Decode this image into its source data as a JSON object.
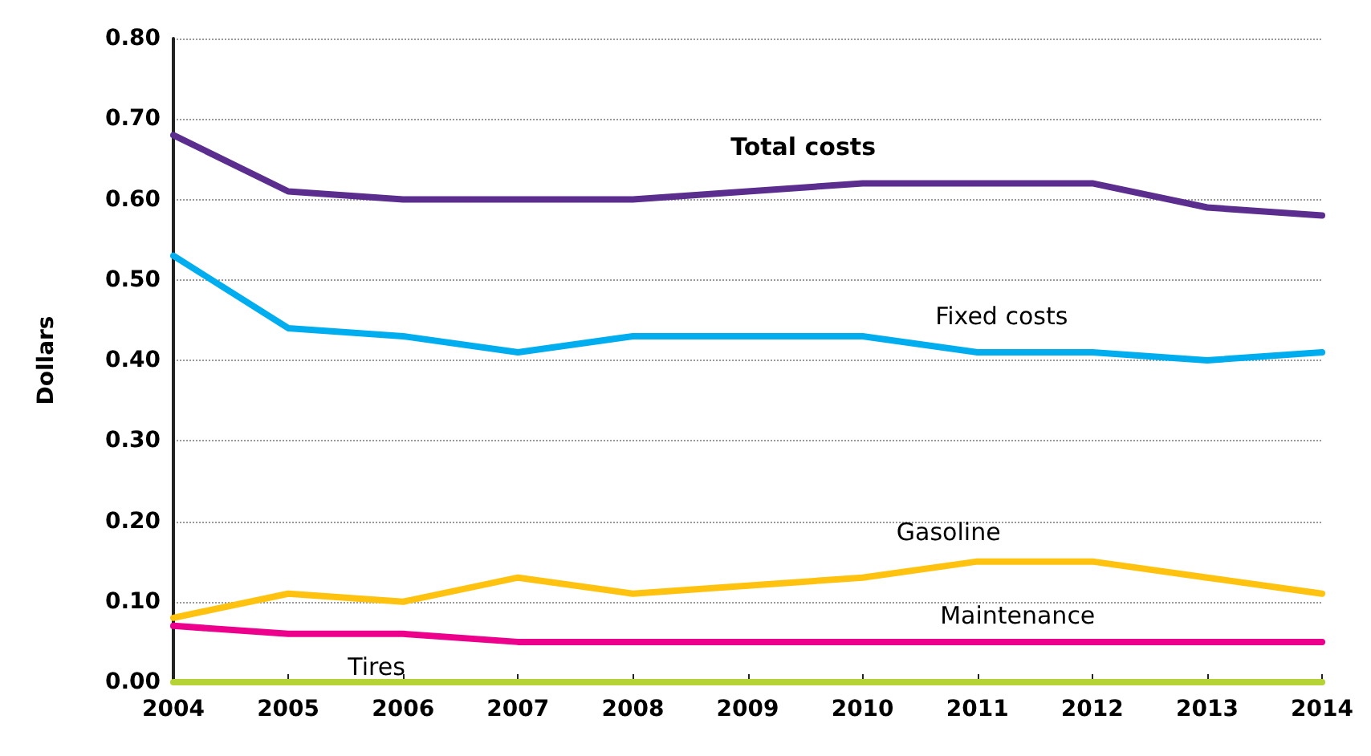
{
  "chart_data": {
    "type": "line",
    "ylabel": "Dollars",
    "categories": [
      "2004",
      "2005",
      "2006",
      "2007",
      "2008",
      "2009",
      "2010",
      "2011",
      "2012",
      "2013",
      "2014"
    ],
    "series": [
      {
        "name": "Total costs",
        "color": "#5b2d8e",
        "values": [
          0.68,
          0.61,
          0.6,
          0.6,
          0.6,
          0.61,
          0.62,
          0.62,
          0.62,
          0.59,
          0.58
        ]
      },
      {
        "name": "Fixed costs",
        "color": "#00aeef",
        "values": [
          0.53,
          0.44,
          0.43,
          0.41,
          0.43,
          0.43,
          0.43,
          0.41,
          0.41,
          0.4,
          0.41
        ]
      },
      {
        "name": "Gasoline",
        "color": "#ffc20e",
        "values": [
          0.08,
          0.11,
          0.1,
          0.13,
          0.11,
          0.12,
          0.13,
          0.15,
          0.15,
          0.13,
          0.11
        ]
      },
      {
        "name": "Maintenance",
        "color": "#ec008c",
        "values": [
          0.07,
          0.06,
          0.06,
          0.05,
          0.05,
          0.05,
          0.05,
          0.05,
          0.05,
          0.05,
          0.05
        ]
      },
      {
        "name": "Tires",
        "color": "#b5d334",
        "values": [
          0,
          0,
          0,
          0,
          0,
          0,
          0,
          0,
          0,
          0,
          0
        ]
      }
    ],
    "ylim": [
      0,
      0.8
    ],
    "yticks": [
      {
        "value": 0,
        "label": "0.00"
      },
      {
        "value": 0.1,
        "label": "0.10"
      },
      {
        "value": 0.2,
        "label": "0.20"
      },
      {
        "value": 0.3,
        "label": "0.30"
      },
      {
        "value": 0.4,
        "label": "0.40"
      },
      {
        "value": 0.5,
        "label": "0.50"
      },
      {
        "value": 0.6,
        "label": "0.60"
      },
      {
        "value": 0.7,
        "label": "0.70"
      },
      {
        "value": 0.8,
        "label": "0.80"
      }
    ],
    "grid": "y",
    "legend": false,
    "marker": "none",
    "line_style": "solid"
  }
}
